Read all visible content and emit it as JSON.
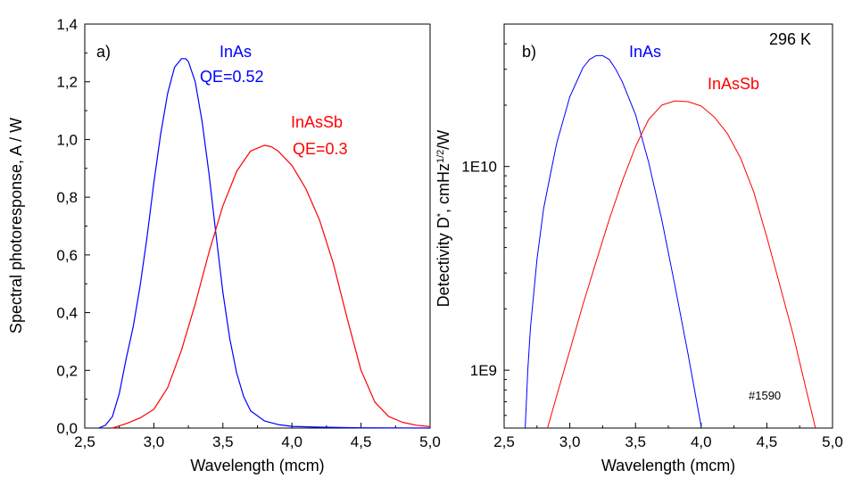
{
  "chart_data": [
    {
      "type": "line",
      "panel_label": "a)",
      "xlabel": "Wavelength (mcm)",
      "ylabel": "Spectral photoresponse, A / W",
      "xlim": [
        2.5,
        5.0
      ],
      "ylim": [
        0.0,
        1.4
      ],
      "xticks": [
        "2,5",
        "3,0",
        "3,5",
        "4,0",
        "4,5",
        "5,0"
      ],
      "yticks": [
        "0,0",
        "0,2",
        "0,4",
        "0,6",
        "0,8",
        "1,0",
        "1,2",
        "1,4"
      ],
      "grid": false,
      "series": [
        {
          "name": "InAs",
          "color": "#0000ff",
          "x": [
            2.6,
            2.65,
            2.7,
            2.75,
            2.8,
            2.85,
            2.9,
            2.95,
            3.0,
            3.05,
            3.1,
            3.15,
            3.2,
            3.23,
            3.25,
            3.3,
            3.35,
            3.4,
            3.45,
            3.5,
            3.55,
            3.6,
            3.65,
            3.7,
            3.8,
            3.9,
            4.0,
            4.2,
            4.5,
            5.0
          ],
          "y": [
            0.0,
            0.01,
            0.04,
            0.12,
            0.24,
            0.35,
            0.49,
            0.66,
            0.85,
            1.02,
            1.16,
            1.25,
            1.28,
            1.28,
            1.27,
            1.2,
            1.06,
            0.88,
            0.67,
            0.47,
            0.31,
            0.19,
            0.11,
            0.06,
            0.025,
            0.012,
            0.006,
            0.003,
            0.001,
            0.0
          ]
        },
        {
          "name": "InAsSb",
          "color": "#ff0000",
          "x": [
            2.7,
            2.8,
            2.9,
            3.0,
            3.1,
            3.2,
            3.3,
            3.4,
            3.5,
            3.6,
            3.7,
            3.8,
            3.85,
            3.9,
            4.0,
            4.1,
            4.2,
            4.3,
            4.4,
            4.5,
            4.6,
            4.7,
            4.8,
            4.9,
            5.0
          ],
          "y": [
            0.0,
            0.015,
            0.035,
            0.065,
            0.14,
            0.27,
            0.43,
            0.61,
            0.77,
            0.89,
            0.96,
            0.98,
            0.975,
            0.96,
            0.91,
            0.83,
            0.72,
            0.57,
            0.38,
            0.2,
            0.09,
            0.04,
            0.02,
            0.01,
            0.005
          ]
        }
      ],
      "annotations": [
        {
          "text": "InAs",
          "color": "#0000ff"
        },
        {
          "text": "QE=0.52",
          "color": "#0000ff"
        },
        {
          "text": "InAsSb",
          "color": "#ff0000"
        },
        {
          "text": "QE=0.3",
          "color": "#ff0000"
        }
      ]
    },
    {
      "type": "line",
      "panel_label": "b)",
      "xlabel": "Wavelength (mcm)",
      "ylabel": "Detectivity D*, cmHz1/2/W",
      "xlim": [
        2.5,
        5.0
      ],
      "ylim": [
        520000000.0,
        50000000000.0
      ],
      "yscale": "log",
      "xticks": [
        "2,5",
        "3,0",
        "3,5",
        "4,0",
        "4,5",
        "5,0"
      ],
      "yticks": [
        "1E9",
        "1E10"
      ],
      "grid": false,
      "series": [
        {
          "name": "InAs",
          "color": "#0000ff",
          "x": [
            2.66,
            2.68,
            2.7,
            2.75,
            2.8,
            2.85,
            2.9,
            3.0,
            3.1,
            3.15,
            3.2,
            3.25,
            3.3,
            3.35,
            3.4,
            3.5,
            3.6,
            3.7,
            3.8,
            3.9,
            4.0
          ],
          "y": [
            520000000.0,
            1000000000.0,
            1600000000.0,
            3500000000.0,
            6200000000.0,
            9000000000.0,
            13000000000.0,
            22000000000.0,
            30500000000.0,
            33500000000.0,
            35000000000.0,
            35000000000.0,
            33500000000.0,
            30000000000.0,
            26000000000.0,
            18000000000.0,
            10500000000.0,
            5500000000.0,
            2600000000.0,
            1200000000.0,
            530000000.0
          ]
        },
        {
          "name": "InAsSb",
          "color": "#ff0000",
          "x": [
            2.83,
            2.9,
            3.0,
            3.1,
            3.2,
            3.3,
            3.4,
            3.5,
            3.6,
            3.7,
            3.8,
            3.9,
            4.0,
            4.1,
            4.2,
            4.3,
            4.4,
            4.5,
            4.6,
            4.7,
            4.8,
            4.87
          ],
          "y": [
            520000000.0,
            750000000.0,
            1250000000.0,
            2100000000.0,
            3400000000.0,
            5500000000.0,
            8500000000.0,
            12500000000.0,
            17000000000.0,
            20000000000.0,
            21000000000.0,
            20800000000.0,
            19800000000.0,
            17500000000.0,
            14500000000.0,
            11000000000.0,
            7500000000.0,
            4500000000.0,
            2600000000.0,
            1500000000.0,
            800000000.0,
            520000000.0
          ]
        }
      ],
      "annotations": [
        {
          "text": "InAs",
          "color": "#0000ff"
        },
        {
          "text": "InAsSb",
          "color": "#ff0000"
        },
        {
          "text": "296 K",
          "color": "#000000"
        },
        {
          "text": "#1590",
          "color": "#000000"
        }
      ]
    }
  ]
}
